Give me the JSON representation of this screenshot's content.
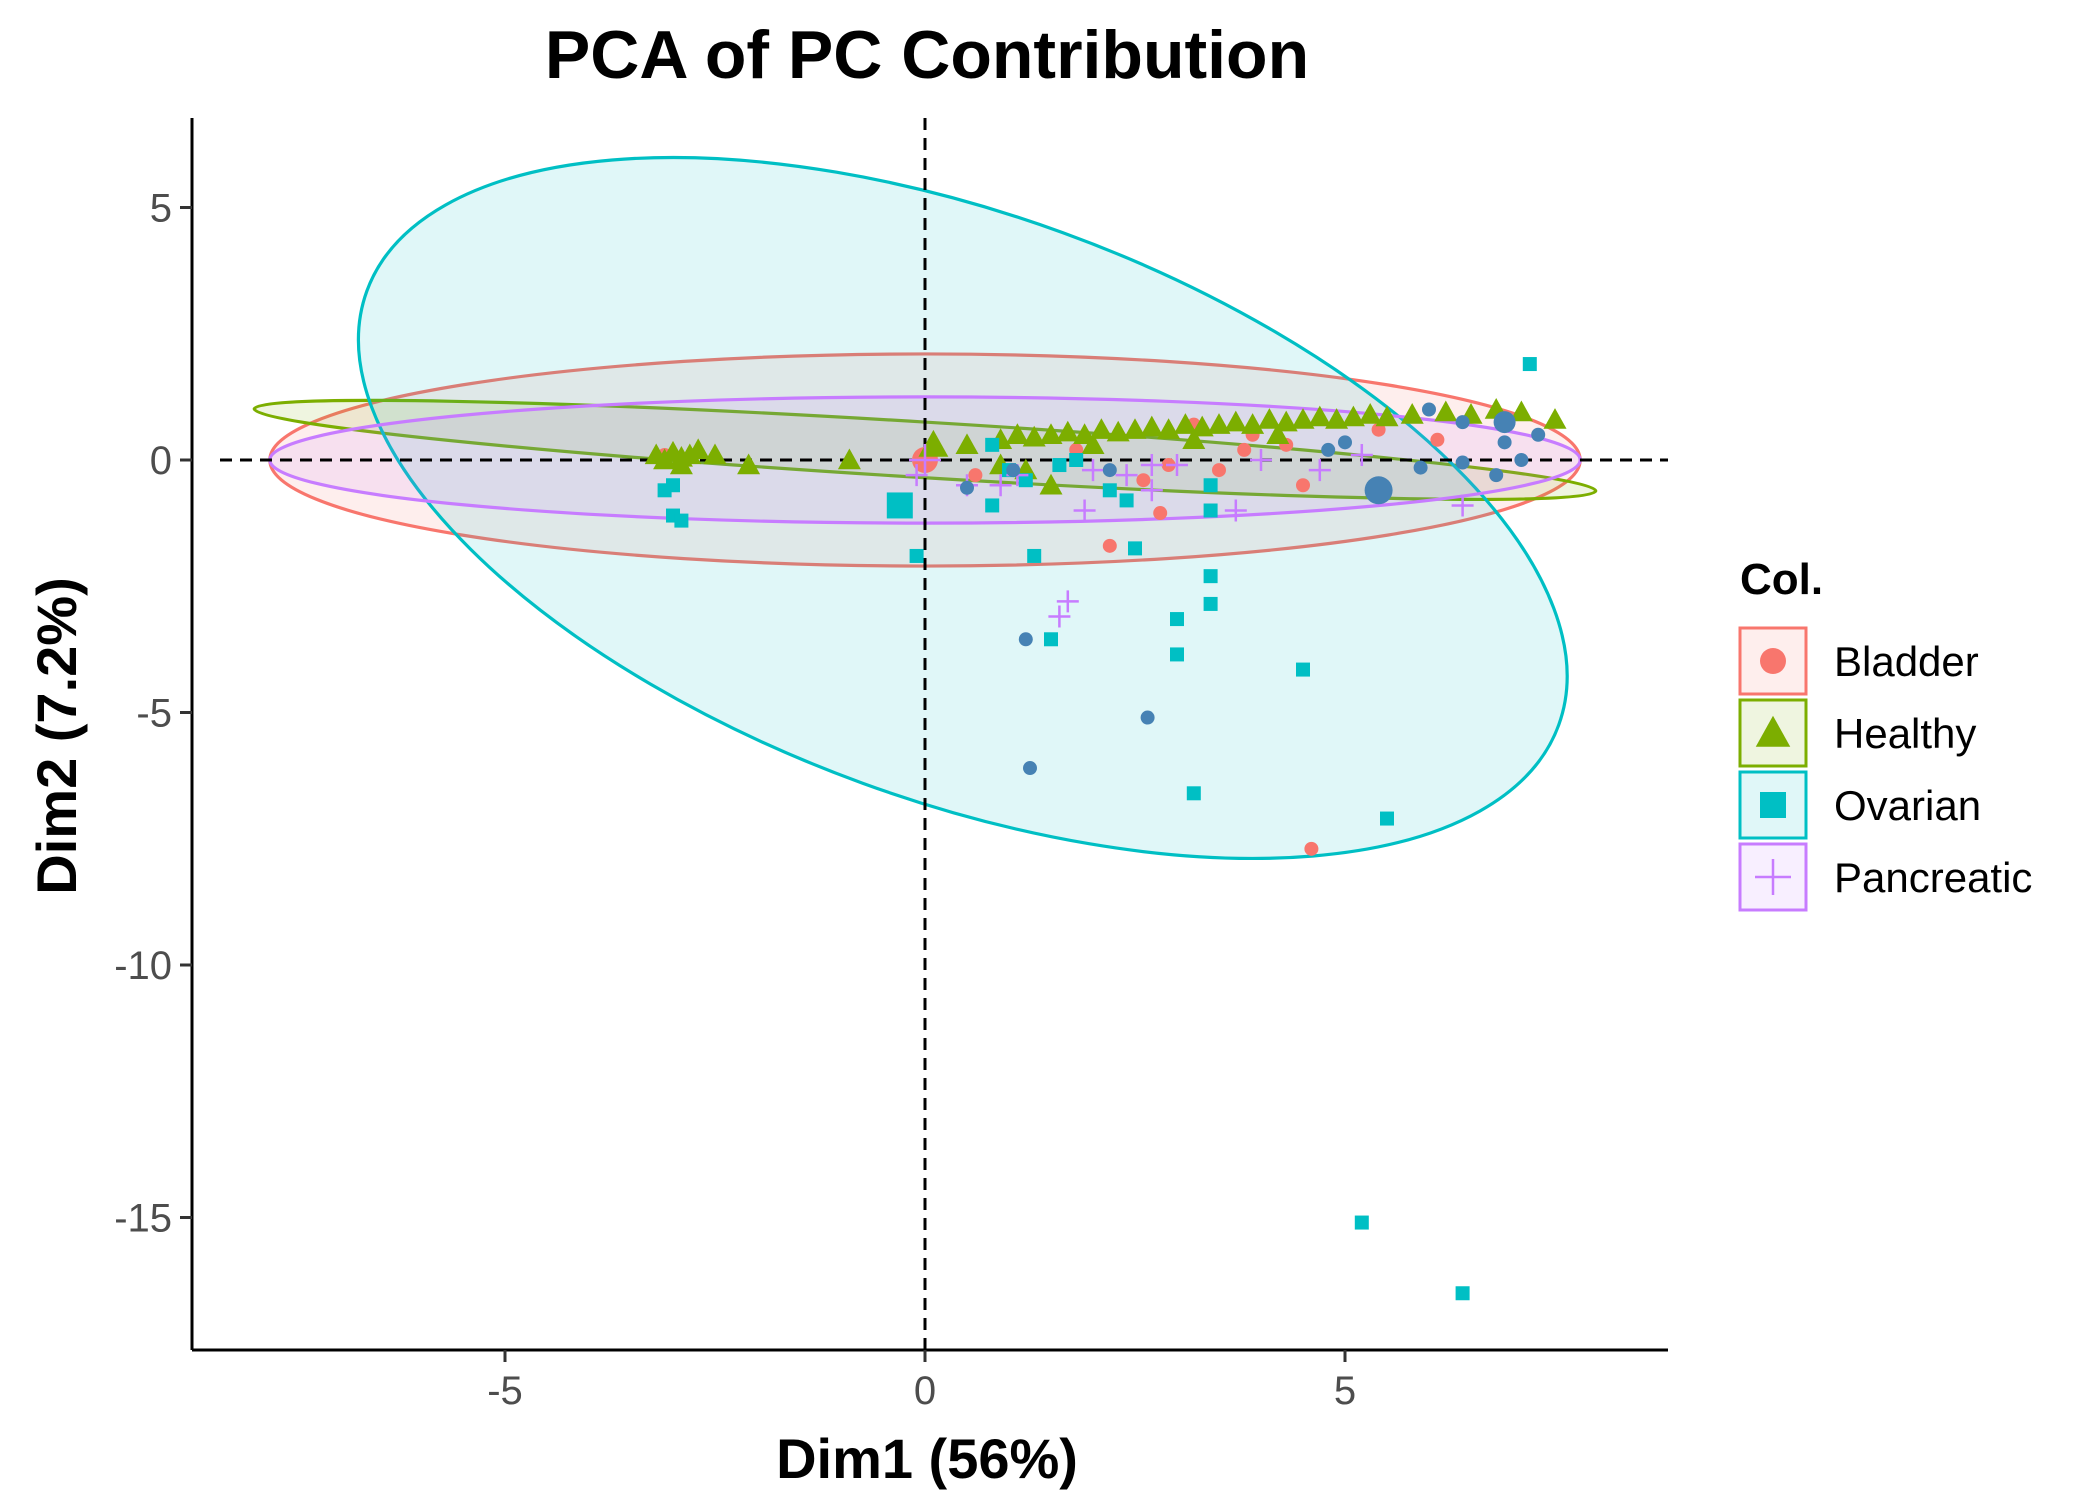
{
  "chart_data": {
    "type": "scatter",
    "title": "PCA of PC Contribution",
    "xlabel": "Dim1 (56%)",
    "ylabel": "Dim2 (7.2%)",
    "xlim": [
      -8.8,
      8.8
    ],
    "ylim": [
      -17.6,
      6.8
    ],
    "x_ticks": [
      -5,
      0,
      5
    ],
    "y_ticks": [
      5,
      0,
      -5,
      -10,
      -15
    ],
    "x_tick_labels": [
      "-5",
      "0",
      "5"
    ],
    "y_tick_labels": [
      "5",
      "0",
      "-5",
      "-10",
      "-15"
    ],
    "grid": false,
    "reference_lines": {
      "x": 0,
      "y": 0,
      "style": "dashed"
    },
    "legend": {
      "title": "Col.",
      "position": "right",
      "entries": [
        {
          "label": "Bladder",
          "shape": "circle",
          "color": "#F8766D"
        },
        {
          "label": "Healthy",
          "shape": "triangle",
          "color": "#7CAE00"
        },
        {
          "label": "Ovarian",
          "shape": "square",
          "color": "#00BFC4"
        },
        {
          "label": "Pancreatic",
          "shape": "plus",
          "color": "#C77CFF"
        }
      ]
    },
    "series": [
      {
        "name": "Bladder",
        "color": "#F8766D",
        "shape": "circle",
        "ellipse": {
          "cx": 0,
          "cy": 0,
          "rx": 7.8,
          "ry": 2.1,
          "angle_deg": 0
        },
        "centroid": [
          0,
          0
        ],
        "points": [
          [
            2.2,
            -1.7
          ],
          [
            4.6,
            -7.7
          ],
          [
            2.8,
            -1.05
          ],
          [
            4.5,
            -0.5
          ],
          [
            3.5,
            -0.2
          ],
          [
            3.2,
            0.7
          ],
          [
            4.3,
            0.3
          ],
          [
            2.6,
            -0.4
          ],
          [
            3.8,
            0.2
          ],
          [
            5.4,
            0.6
          ],
          [
            6.1,
            0.4
          ],
          [
            -3.1,
            0.1
          ],
          [
            0.6,
            -0.3
          ],
          [
            1.8,
            0.2
          ],
          [
            2.9,
            -0.1
          ],
          [
            3.9,
            0.5
          ]
        ]
      },
      {
        "name": "Healthy",
        "color": "#7CAE00",
        "shape": "triangle",
        "ellipse": {
          "cx": 0,
          "cy": 0.2,
          "rx": 8.0,
          "ry": 0.55,
          "angle_deg": 3.5
        },
        "centroid": [
          0.1,
          0.3
        ],
        "points": [
          [
            -3.2,
            0.1
          ],
          [
            -3.0,
            0.15
          ],
          [
            -2.9,
            0.05
          ],
          [
            -2.8,
            0.1
          ],
          [
            -3.1,
            0.0
          ],
          [
            -2.7,
            0.2
          ],
          [
            -2.5,
            0.1
          ],
          [
            -2.1,
            -0.1
          ],
          [
            -2.9,
            -0.1
          ],
          [
            0.5,
            0.3
          ],
          [
            0.9,
            0.4
          ],
          [
            1.1,
            0.5
          ],
          [
            1.3,
            0.45
          ],
          [
            1.5,
            0.5
          ],
          [
            1.7,
            0.55
          ],
          [
            1.9,
            0.5
          ],
          [
            2.1,
            0.6
          ],
          [
            2.3,
            0.55
          ],
          [
            2.5,
            0.6
          ],
          [
            2.7,
            0.65
          ],
          [
            2.9,
            0.6
          ],
          [
            3.1,
            0.7
          ],
          [
            3.3,
            0.65
          ],
          [
            3.5,
            0.7
          ],
          [
            3.7,
            0.75
          ],
          [
            3.9,
            0.7
          ],
          [
            4.1,
            0.8
          ],
          [
            4.3,
            0.75
          ],
          [
            4.5,
            0.8
          ],
          [
            4.7,
            0.85
          ],
          [
            4.9,
            0.8
          ],
          [
            5.1,
            0.85
          ],
          [
            5.3,
            0.9
          ],
          [
            5.5,
            0.85
          ],
          [
            5.8,
            0.9
          ],
          [
            6.2,
            0.95
          ],
          [
            6.5,
            0.9
          ],
          [
            6.8,
            1.0
          ],
          [
            7.1,
            0.95
          ],
          [
            7.5,
            0.8
          ],
          [
            1.5,
            -0.5
          ],
          [
            1.2,
            -0.2
          ],
          [
            0.9,
            -0.1
          ],
          [
            2.0,
            0.3
          ],
          [
            3.2,
            0.4
          ],
          [
            4.2,
            0.5
          ],
          [
            -0.9,
            0.0
          ]
        ]
      },
      {
        "name": "Ovarian",
        "color": "#00BFC4",
        "shape": "square",
        "ellipse": {
          "cx": 0.45,
          "cy": -0.95,
          "rx": 7.55,
          "ry": 5.8,
          "angle_deg": 20
        },
        "centroid": [
          -0.3,
          -0.9
        ],
        "points": [
          [
            7.2,
            1.9
          ],
          [
            -0.1,
            -1.9
          ],
          [
            1.3,
            -1.9
          ],
          [
            2.5,
            -1.75
          ],
          [
            1.5,
            -3.55
          ],
          [
            3.4,
            -2.3
          ],
          [
            3.4,
            -2.85
          ],
          [
            3.0,
            -3.15
          ],
          [
            3.0,
            -3.85
          ],
          [
            4.5,
            -4.15
          ],
          [
            3.2,
            -6.6
          ],
          [
            5.5,
            -7.1
          ],
          [
            5.2,
            -15.1
          ],
          [
            6.4,
            -16.5
          ],
          [
            -3.1,
            -0.6
          ],
          [
            -3.0,
            -1.1
          ],
          [
            -2.9,
            -1.2
          ],
          [
            -3.0,
            -0.5
          ],
          [
            0.8,
            -0.9
          ],
          [
            1.0,
            -0.2
          ],
          [
            1.2,
            -0.4
          ],
          [
            2.2,
            -0.6
          ],
          [
            2.4,
            -0.8
          ],
          [
            3.4,
            -1.0
          ],
          [
            3.4,
            -0.5
          ],
          [
            0.8,
            0.3
          ],
          [
            1.6,
            -0.1
          ],
          [
            1.8,
            0.0
          ]
        ]
      },
      {
        "name": "Pancreatic",
        "color": "#C77CFF",
        "shape": "plus",
        "ellipse": {
          "cx": 0,
          "cy": 0,
          "rx": 7.8,
          "ry": 1.25,
          "angle_deg": 0
        },
        "centroid": [
          0,
          0
        ],
        "points": [
          [
            1.6,
            -3.1
          ],
          [
            1.7,
            -2.8
          ],
          [
            1.9,
            -1.0
          ],
          [
            2.7,
            -0.6
          ],
          [
            3.7,
            -1.0
          ],
          [
            6.4,
            -0.9
          ],
          [
            4.7,
            -0.2
          ],
          [
            5.2,
            0.1
          ],
          [
            0.5,
            -0.5
          ],
          [
            0.9,
            -0.5
          ],
          [
            1.1,
            -0.3
          ],
          [
            2.0,
            -0.2
          ],
          [
            2.4,
            -0.3
          ],
          [
            3.0,
            -0.1
          ],
          [
            4.0,
            0.0
          ],
          [
            -0.1,
            -0.3
          ],
          [
            2.7,
            -0.1
          ]
        ]
      },
      {
        "name": "",
        "color": "#4682B4",
        "shape": "circle",
        "points": [
          [
            5.4,
            -0.6
          ],
          [
            6.0,
            1.0
          ],
          [
            6.4,
            0.75
          ],
          [
            6.4,
            -0.05
          ],
          [
            6.9,
            0.35
          ],
          [
            6.9,
            0.75
          ],
          [
            7.1,
            0.0
          ],
          [
            7.3,
            0.5
          ],
          [
            6.8,
            -0.3
          ],
          [
            5.9,
            -0.15
          ],
          [
            5.0,
            0.35
          ],
          [
            4.8,
            0.2
          ],
          [
            0.5,
            -0.55
          ],
          [
            1.2,
            -3.55
          ],
          [
            1.25,
            -6.1
          ],
          [
            2.65,
            -5.1
          ],
          [
            1.05,
            -0.2
          ],
          [
            2.2,
            -0.2
          ]
        ]
      }
    ]
  }
}
